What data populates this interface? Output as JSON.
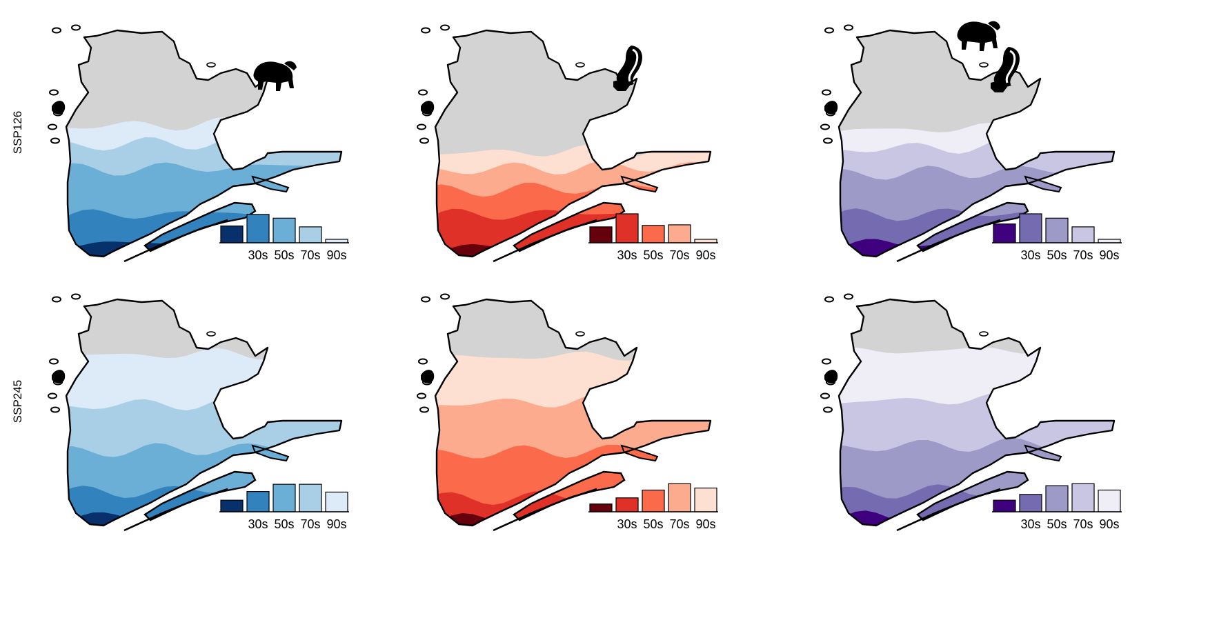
{
  "figure": {
    "rows": [
      {
        "label": "SSP126",
        "panels": [
          {
            "palette": [
              "#08306b",
              "#3182bd",
              "#6baed6",
              "#a9cfe6",
              "#ddeaf7"
            ],
            "icon": "bison-icon",
            "bars": [
              0.58,
              0.98,
              0.85,
              0.55,
              0.12
            ],
            "bands": [
              0.08,
              0.14,
              0.22,
              0.12,
              0.09
            ]
          },
          {
            "palette": [
              "#67000d",
              "#e03128",
              "#fb6a4a",
              "#fcab8f",
              "#fde0d2"
            ],
            "icon": "skunk-icon",
            "bars": [
              0.55,
              1.0,
              0.6,
              0.62,
              0.12
            ],
            "bands": [
              0.06,
              0.16,
              0.12,
              0.1,
              0.08
            ]
          },
          {
            "palette": [
              "#3f007d",
              "#756bb1",
              "#9e9ac8",
              "#c8c6e2",
              "#efedf5"
            ],
            "icon": "bison-and-skunk-icon",
            "bars": [
              0.65,
              1.0,
              0.85,
              0.55,
              0.12
            ],
            "bands": [
              0.08,
              0.14,
              0.2,
              0.12,
              0.09
            ]
          }
        ]
      },
      {
        "label": "SSP245",
        "panels": [
          {
            "palette": [
              "#08306b",
              "#3182bd",
              "#6baed6",
              "#a9cfe6",
              "#ddeaf7"
            ],
            "icon": "none",
            "bars": [
              0.4,
              0.7,
              0.95,
              0.95,
              0.68
            ],
            "bands": [
              0.06,
              0.12,
              0.2,
              0.22,
              0.24
            ]
          },
          {
            "palette": [
              "#67000d",
              "#e03128",
              "#fb6a4a",
              "#fcab8f",
              "#fde0d2"
            ],
            "icon": "none",
            "bars": [
              0.27,
              0.48,
              0.75,
              0.97,
              0.82
            ],
            "bands": [
              0.05,
              0.1,
              0.22,
              0.24,
              0.22
            ]
          },
          {
            "palette": [
              "#3f007d",
              "#756bb1",
              "#9e9ac8",
              "#c8c6e2",
              "#efedf5"
            ],
            "icon": "none",
            "bars": [
              0.4,
              0.6,
              0.9,
              0.97,
              0.75
            ],
            "bands": [
              0.06,
              0.12,
              0.22,
              0.22,
              0.24
            ]
          }
        ]
      }
    ],
    "decades": [
      "30s",
      "50s",
      "70s",
      "90s"
    ],
    "land_color": "#d3d3d3",
    "coast_color": "#000000"
  }
}
